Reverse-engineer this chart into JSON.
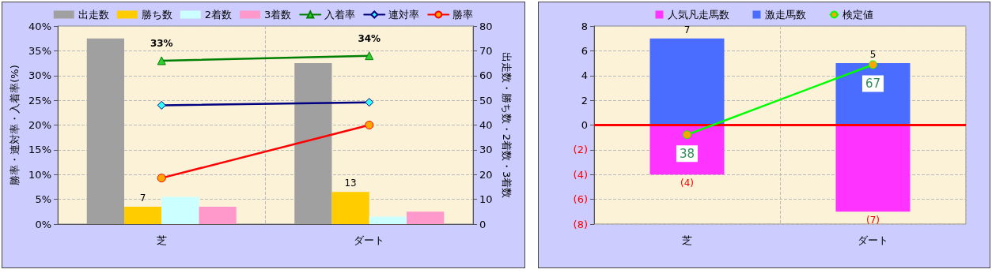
{
  "chart_data": [
    {
      "type": "bar",
      "categories": [
        "芝",
        "ダート"
      ],
      "ylabel": "勝率・連対率・入着率(%)",
      "y2label": "出走数・勝ち数・2着数・3着数",
      "series": [
        {
          "name": "出走数",
          "color": "#a0a0a0",
          "axis": "y2",
          "values": [
            75,
            65
          ]
        },
        {
          "name": "勝ち数",
          "color": "#ffcc00",
          "axis": "y2",
          "values": [
            7,
            13
          ],
          "value_labels": [
            "7",
            "13"
          ]
        },
        {
          "name": "2着数",
          "color": "#ccffff",
          "axis": "y2",
          "values": [
            11,
            3
          ]
        },
        {
          "name": "3着数",
          "color": "#ff99cc",
          "axis": "y2",
          "values": [
            7,
            5
          ]
        },
        {
          "name": "入着率",
          "type": "line",
          "color": "#008000",
          "marker": "triangle",
          "values": [
            33,
            34
          ],
          "value_labels": [
            "33%",
            "34%"
          ]
        },
        {
          "name": "連対率",
          "type": "line",
          "color": "#000080",
          "marker": "diamond",
          "values": [
            24,
            24.6
          ]
        },
        {
          "name": "勝率",
          "type": "line",
          "color": "#ff0000",
          "marker": "circle",
          "values": [
            9.3,
            20
          ]
        }
      ],
      "ylim": [
        0,
        40
      ],
      "yticks": [
        {
          "value": 0,
          "label": "0%"
        },
        {
          "value": 5,
          "label": "5%"
        },
        {
          "value": 10,
          "label": "10%"
        },
        {
          "value": 15,
          "label": "15%"
        },
        {
          "value": 20,
          "label": "20%"
        },
        {
          "value": 25,
          "label": "25%"
        },
        {
          "value": 30,
          "label": "30%"
        },
        {
          "value": 35,
          "label": "35%"
        },
        {
          "value": 40,
          "label": "40%"
        }
      ],
      "y2lim": [
        0,
        80
      ],
      "y2ticks": [
        0,
        10,
        20,
        30,
        40,
        50,
        60,
        70,
        80
      ],
      "grid": true,
      "legend": "top"
    },
    {
      "type": "bar",
      "stacked": true,
      "categories": [
        "芝",
        "ダート"
      ],
      "series": [
        {
          "name": "人気凡走馬数",
          "color": "#ff33ff",
          "values": [
            -4,
            -7
          ],
          "value_labels": [
            "(4)",
            "(7)"
          ]
        },
        {
          "name": "激走馬数",
          "color": "#4a6cff",
          "values": [
            7,
            5
          ],
          "value_labels": [
            "7",
            "5"
          ]
        },
        {
          "name": "検定値",
          "type": "line",
          "color": "#00ff00",
          "marker": "circle",
          "axis": "y2",
          "values": [
            38,
            67
          ],
          "value_labels": [
            "38",
            "67"
          ]
        }
      ],
      "ylim": [
        -8,
        8
      ],
      "yticks": [
        {
          "value": -8,
          "label": "(8)"
        },
        {
          "value": -6,
          "label": "(6)"
        },
        {
          "value": -4,
          "label": "(4)"
        },
        {
          "value": -2,
          "label": "(2)"
        },
        0,
        2,
        4,
        6,
        8
      ],
      "y2lim": [
        1,
        83
      ],
      "ref_lines": [
        {
          "axis": "y",
          "value": 0,
          "color": "#ff0000"
        }
      ],
      "grid": true,
      "legend": "top"
    }
  ]
}
